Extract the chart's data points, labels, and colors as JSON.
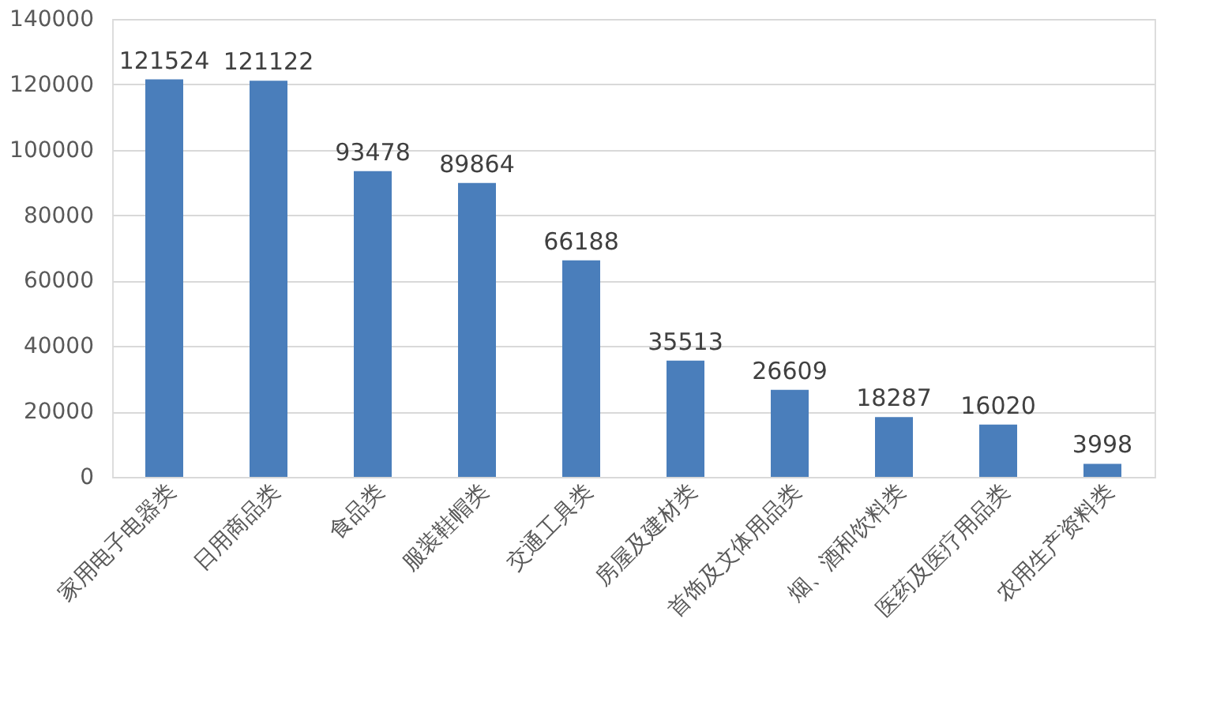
{
  "chart_data": {
    "type": "bar",
    "categories": [
      "家用电子电器类",
      "日用商品类",
      "食品类",
      "服装鞋帽类",
      "交通工具类",
      "房屋及建材类",
      "首饰及文体用品类",
      "烟、酒和饮料类",
      "医药及医疗用品类",
      "农用生产资料类"
    ],
    "values": [
      121524,
      121122,
      93478,
      89864,
      66188,
      35513,
      26609,
      18287,
      16020,
      3998
    ],
    "color": "#4a7ebb",
    "ylim": [
      0,
      140000
    ],
    "yticks": [
      0,
      20000,
      40000,
      60000,
      80000,
      100000,
      120000,
      140000
    ],
    "grid": "y",
    "data_labels": true
  }
}
